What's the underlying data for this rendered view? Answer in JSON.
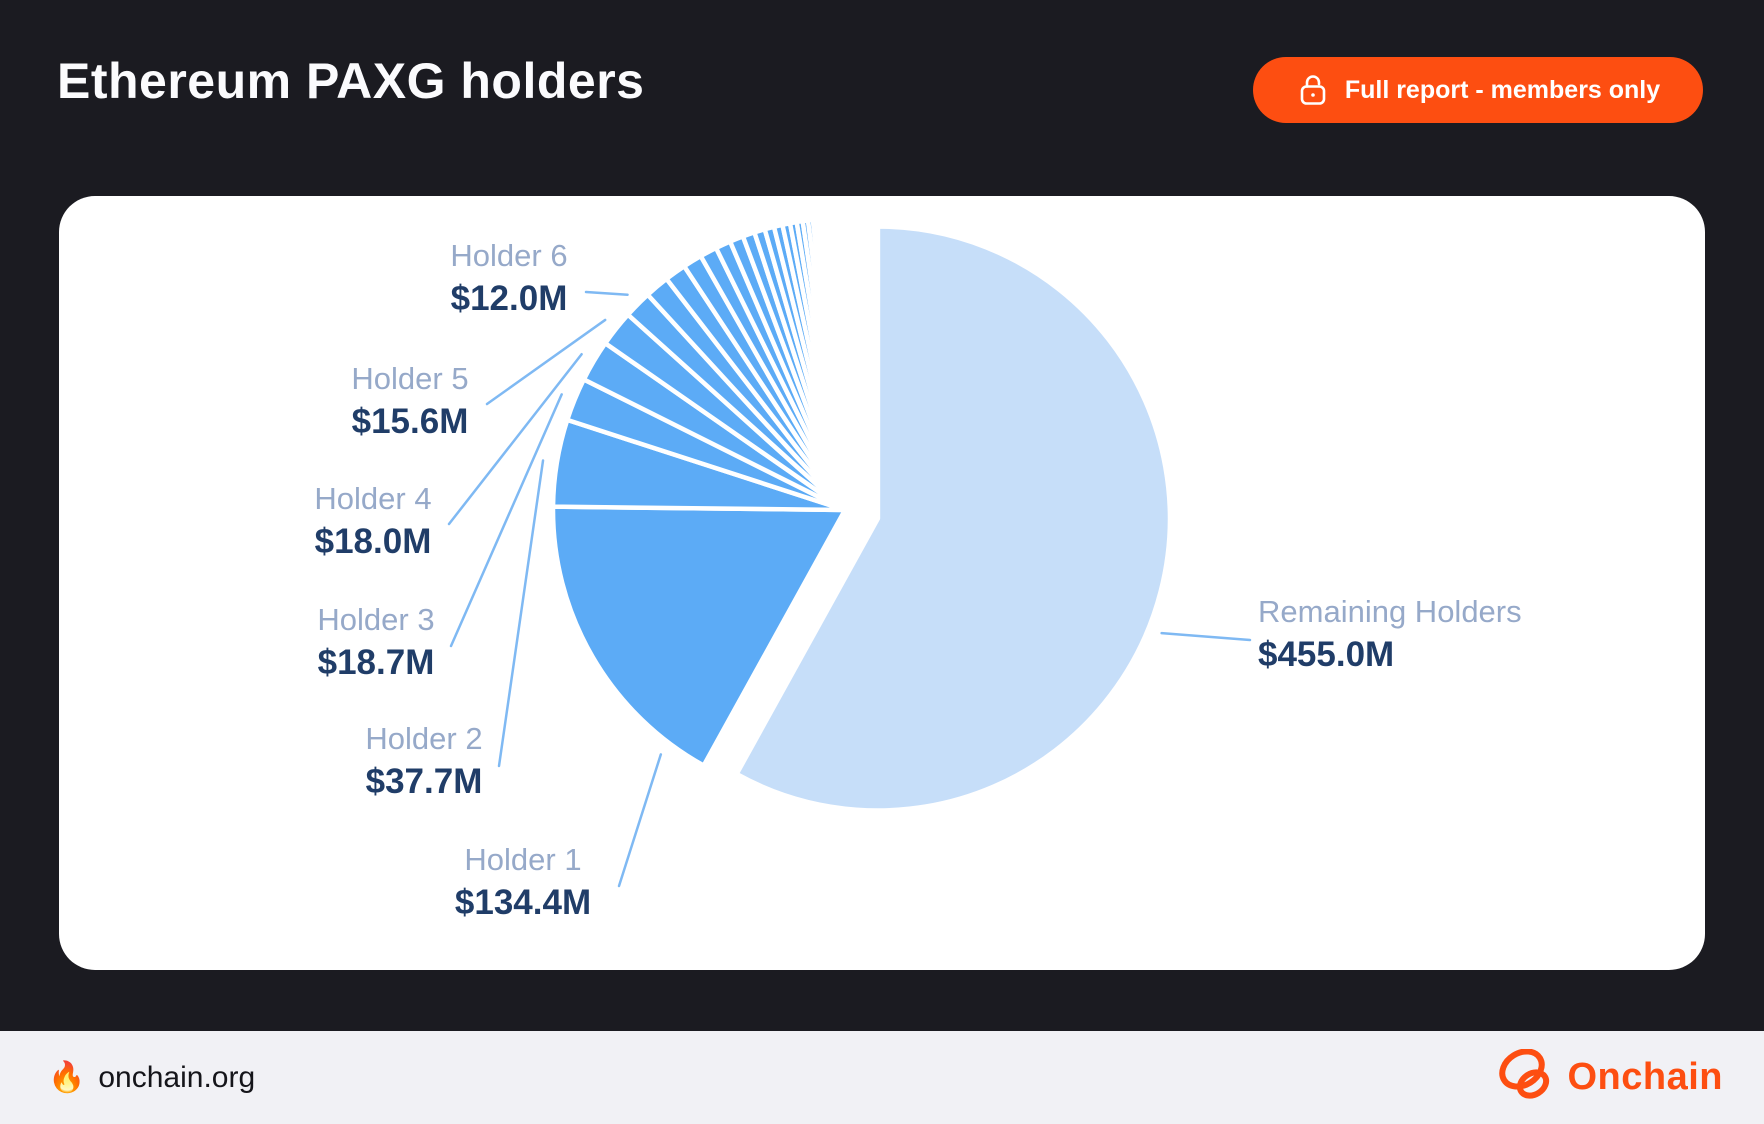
{
  "header": {
    "title": "Ethereum PAXG holders",
    "cta_label": "Full report - members only"
  },
  "footer": {
    "site": "onchain.org",
    "site_icon": "fire-emoji",
    "brand": "Onchain"
  },
  "colors": {
    "background": "#1b1b21",
    "card": "#ffffff",
    "accent_orange": "#fd4e11",
    "pie_main_blue": "#5cabf6",
    "pie_light_blue": "#c6def9",
    "label_name": "#96a9c9",
    "label_value": "#203d68",
    "connector": "#7fb9f3",
    "footer_bg": "#f1f1f5"
  },
  "chart_data": {
    "type": "pie",
    "title": "Ethereum PAXG holders",
    "unit": "USD millions",
    "direction": "clockwise",
    "start_angle_deg": 0,
    "legend_position": "callout-labels",
    "slices": [
      {
        "label": "Remaining Holders",
        "value": 455.0,
        "value_label": "$455.0M",
        "color": "#c6def9",
        "exploded": true
      },
      {
        "label": "Holder 1",
        "value": 134.4,
        "value_label": "$134.4M",
        "color": "#5cabf6"
      },
      {
        "label": "Holder 2",
        "value": 37.7,
        "value_label": "$37.7M",
        "color": "#5cabf6"
      },
      {
        "label": "Holder 3",
        "value": 18.7,
        "value_label": "$18.7M",
        "color": "#5cabf6"
      },
      {
        "label": "Holder 4",
        "value": 18.0,
        "value_label": "$18.0M",
        "color": "#5cabf6"
      },
      {
        "label": "Holder 5",
        "value": 15.6,
        "value_label": "$15.6M",
        "color": "#5cabf6"
      },
      {
        "label": "Holder 6",
        "value": 12.0,
        "value_label": "$12.0M",
        "color": "#5cabf6"
      }
    ],
    "unlabeled_holders_estimated": [
      10.5,
      9.3,
      8.3,
      7.4,
      6.6,
      5.9,
      5.2,
      4.6,
      4.1,
      3.7,
      3.3,
      2.9,
      2.6,
      2.3,
      2.1,
      1.8,
      1.6,
      1.5,
      1.3,
      1.2,
      1.0,
      0.9,
      0.8,
      0.7,
      0.65,
      0.6,
      0.5,
      0.45,
      0.4,
      0.35
    ]
  }
}
